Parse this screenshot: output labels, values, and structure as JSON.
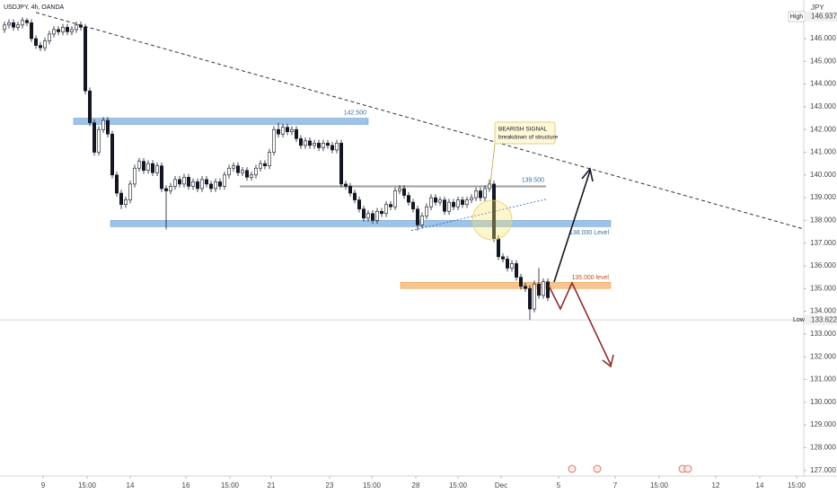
{
  "chart_data": {
    "type": "candlestick",
    "title": "USDJPY, 4h, OANDA",
    "currency": "JPY",
    "high_label": "High",
    "high_value": "146.937",
    "low_label": "Low",
    "low_value": 133.622,
    "low_value_label": "133.622",
    "callout": [
      "BEARISH SIGNAL",
      "breakdown of structure"
    ],
    "xlim": [
      -1,
      178
    ],
    "ylim": [
      126.75,
      147.7
    ],
    "xticks": [
      {
        "value": 8.6,
        "label": "9"
      },
      {
        "value": 18.4,
        "label": "15:00"
      },
      {
        "value": 28,
        "label": "14"
      },
      {
        "value": 40.4,
        "label": "16"
      },
      {
        "value": 50.2,
        "label": "15:00"
      },
      {
        "value": 59.4,
        "label": "21"
      },
      {
        "value": 72.4,
        "label": "23"
      },
      {
        "value": 81.8,
        "label": "15:00"
      },
      {
        "value": 91.6,
        "label": "28"
      },
      {
        "value": 101,
        "label": "15:00"
      },
      {
        "value": 110.6,
        "label": "Dec"
      },
      {
        "value": 123.4,
        "label": "5"
      },
      {
        "value": 136,
        "label": "7"
      },
      {
        "value": 145.8,
        "label": "15:00"
      },
      {
        "value": 158.4,
        "label": "12"
      },
      {
        "value": 168.2,
        "label": "14"
      },
      {
        "value": 176.4,
        "label": "15:00"
      }
    ],
    "yticks": [
      {
        "value": 127,
        "label": "127.000"
      },
      {
        "value": 128,
        "label": "128.000"
      },
      {
        "value": 129,
        "label": "129.000"
      },
      {
        "value": 130,
        "label": "130.000"
      },
      {
        "value": 131,
        "label": "131.000"
      },
      {
        "value": 132,
        "label": "132.000"
      },
      {
        "value": 133,
        "label": "133.000"
      },
      {
        "value": 134,
        "label": "134.000"
      },
      {
        "value": 135,
        "label": "135.000"
      },
      {
        "value": 136,
        "label": "136.000"
      },
      {
        "value": 137,
        "label": "137.000"
      },
      {
        "value": 138,
        "label": "138.000"
      },
      {
        "value": 139,
        "label": "139.000"
      },
      {
        "value": 140,
        "label": "140.000"
      },
      {
        "value": 141,
        "label": "141.000"
      },
      {
        "value": 142,
        "label": "142.000"
      },
      {
        "value": 143,
        "label": "143.000"
      },
      {
        "value": 144,
        "label": "144.000"
      },
      {
        "value": 145,
        "label": "145.000"
      },
      {
        "value": 146,
        "label": "146.000"
      }
    ],
    "up_color": "#ffffff",
    "down_color": "#131722",
    "levels": [
      {
        "label": "142.500",
        "value": 142.5,
        "start": 15.4,
        "end": 81,
        "color": "#9fc3e7",
        "style": "zone"
      },
      {
        "label": "138.000 Level",
        "value": 138,
        "start": 23.6,
        "end": 135,
        "color": "#9fc3e7",
        "style": "zone"
      },
      {
        "label": "139.500",
        "value": 139.5,
        "start": 52.4,
        "end": 120.6,
        "color": "#9e9e9e",
        "style": "line"
      },
      {
        "label": "135.000 level",
        "value": 135,
        "start": 88.2,
        "end": 135,
        "color": "#f6c48e",
        "style": "zone"
      }
    ],
    "trendlines": [
      [
        [
          7,
          147.15
        ],
        [
          178,
          137.62
        ]
      ],
      [
        [
          90.6,
          137.55
        ],
        [
          120.6,
          138.93
        ]
      ]
    ],
    "ohlc": [
      [
        146.4,
        146.75,
        146.25,
        146.6
      ],
      [
        146.6,
        146.85,
        146.45,
        146.7
      ],
      [
        146.7,
        146.85,
        146.35,
        146.5
      ],
      [
        146.5,
        146.75,
        146.35,
        146.6
      ],
      [
        146.6,
        146.94,
        146.45,
        146.8
      ],
      [
        146.8,
        146.9,
        146.55,
        146.7
      ],
      [
        146.7,
        146.85,
        145.85,
        146.0
      ],
      [
        146.0,
        146.15,
        145.55,
        145.7
      ],
      [
        145.7,
        145.85,
        145.45,
        145.6
      ],
      [
        145.6,
        146.05,
        145.45,
        145.9
      ],
      [
        145.9,
        146.35,
        145.75,
        146.2
      ],
      [
        146.2,
        146.55,
        146.05,
        146.4
      ],
      [
        146.4,
        146.55,
        146.15,
        146.3
      ],
      [
        146.3,
        146.65,
        146.15,
        146.5
      ],
      [
        146.5,
        146.65,
        146.15,
        146.3
      ],
      [
        146.3,
        146.55,
        146.15,
        146.4
      ],
      [
        146.4,
        146.75,
        146.25,
        146.6
      ],
      [
        146.6,
        146.75,
        146.35,
        146.5
      ],
      [
        146.5,
        146.65,
        143.55,
        143.7
      ],
      [
        143.7,
        143.85,
        142.15,
        142.3
      ],
      [
        142.3,
        142.45,
        140.85,
        141.0
      ],
      [
        141.0,
        142.15,
        140.85,
        142.0
      ],
      [
        142.0,
        142.55,
        141.85,
        142.4
      ],
      [
        142.4,
        142.55,
        141.65,
        141.8
      ],
      [
        141.8,
        141.95,
        139.85,
        140.0
      ],
      [
        140.0,
        140.15,
        139.05,
        139.2
      ],
      [
        139.2,
        139.35,
        138.5,
        138.7
      ],
      [
        138.7,
        139.05,
        138.55,
        138.9
      ],
      [
        138.9,
        139.75,
        138.75,
        139.6
      ],
      [
        139.6,
        140.45,
        139.45,
        140.3
      ],
      [
        140.3,
        140.75,
        140.15,
        140.6
      ],
      [
        140.6,
        140.75,
        140.05,
        140.2
      ],
      [
        140.2,
        140.65,
        140.05,
        140.5
      ],
      [
        140.5,
        140.65,
        139.95,
        140.1
      ],
      [
        140.1,
        140.55,
        139.95,
        140.4
      ],
      [
        140.4,
        140.55,
        139.25,
        139.4
      ],
      [
        139.4,
        139.55,
        137.6,
        139.3
      ],
      [
        139.3,
        139.65,
        139.15,
        139.5
      ],
      [
        139.5,
        139.95,
        139.35,
        139.8
      ],
      [
        139.8,
        139.95,
        139.45,
        139.6
      ],
      [
        139.6,
        140.05,
        139.45,
        139.9
      ],
      [
        139.9,
        140.05,
        139.35,
        139.5
      ],
      [
        139.5,
        139.85,
        139.35,
        139.7
      ],
      [
        139.7,
        139.85,
        139.25,
        139.4
      ],
      [
        139.4,
        139.95,
        139.25,
        139.8
      ],
      [
        139.8,
        139.95,
        139.45,
        139.6
      ],
      [
        139.6,
        139.75,
        139.25,
        139.4
      ],
      [
        139.4,
        139.85,
        139.25,
        139.7
      ],
      [
        139.7,
        139.85,
        139.35,
        139.5
      ],
      [
        139.5,
        140.15,
        139.35,
        140.0
      ],
      [
        140.0,
        140.45,
        139.85,
        140.3
      ],
      [
        140.3,
        140.55,
        140.15,
        140.4
      ],
      [
        140.4,
        140.55,
        139.95,
        140.1
      ],
      [
        140.1,
        140.35,
        139.95,
        140.2
      ],
      [
        140.2,
        140.35,
        139.75,
        139.9
      ],
      [
        139.9,
        140.15,
        139.75,
        140.0
      ],
      [
        140.0,
        140.45,
        139.85,
        140.3
      ],
      [
        140.3,
        140.65,
        140.15,
        140.5
      ],
      [
        140.5,
        140.65,
        140.25,
        140.4
      ],
      [
        140.4,
        141.15,
        140.25,
        141.0
      ],
      [
        141.0,
        142.15,
        140.85,
        142.0
      ],
      [
        142.0,
        142.3,
        141.65,
        141.8
      ],
      [
        141.8,
        142.25,
        141.65,
        142.1
      ],
      [
        142.1,
        142.25,
        141.75,
        141.9
      ],
      [
        141.9,
        142.15,
        141.75,
        142.0
      ],
      [
        142.0,
        142.15,
        141.45,
        141.6
      ],
      [
        141.6,
        141.75,
        141.15,
        141.3
      ],
      [
        141.3,
        141.65,
        141.15,
        141.5
      ],
      [
        141.5,
        141.65,
        141.15,
        141.3
      ],
      [
        141.3,
        141.55,
        141.15,
        141.4
      ],
      [
        141.4,
        141.55,
        141.05,
        141.2
      ],
      [
        141.2,
        141.55,
        141.05,
        141.4
      ],
      [
        141.4,
        141.55,
        141.15,
        141.3
      ],
      [
        141.3,
        141.45,
        140.95,
        141.1
      ],
      [
        141.1,
        141.55,
        140.95,
        141.4
      ],
      [
        141.4,
        141.55,
        139.45,
        139.6
      ],
      [
        139.6,
        139.75,
        139.35,
        139.5
      ],
      [
        139.5,
        139.65,
        139.05,
        139.2
      ],
      [
        139.2,
        139.35,
        138.75,
        138.9
      ],
      [
        138.9,
        139.05,
        138.35,
        138.5
      ],
      [
        138.5,
        138.65,
        137.95,
        138.1
      ],
      [
        138.1,
        138.45,
        137.95,
        138.3
      ],
      [
        138.3,
        138.45,
        137.85,
        138.0
      ],
      [
        138.0,
        138.55,
        137.85,
        138.4
      ],
      [
        138.4,
        138.55,
        138.15,
        138.3
      ],
      [
        138.3,
        138.85,
        138.15,
        138.7
      ],
      [
        138.7,
        138.85,
        138.45,
        138.6
      ],
      [
        138.6,
        139.45,
        138.45,
        139.3
      ],
      [
        139.3,
        139.55,
        139.15,
        139.4
      ],
      [
        139.4,
        139.55,
        138.95,
        139.1
      ],
      [
        139.1,
        139.25,
        138.65,
        138.8
      ],
      [
        138.8,
        138.95,
        138.35,
        138.5
      ],
      [
        138.5,
        138.65,
        137.55,
        137.8
      ],
      [
        137.8,
        138.35,
        137.65,
        138.2
      ],
      [
        138.2,
        138.75,
        138.05,
        138.6
      ],
      [
        138.6,
        139.15,
        138.45,
        139.0
      ],
      [
        139.0,
        139.15,
        138.65,
        138.8
      ],
      [
        138.8,
        139.05,
        138.65,
        138.9
      ],
      [
        138.9,
        139.05,
        138.25,
        138.4
      ],
      [
        138.4,
        138.95,
        138.25,
        138.8
      ],
      [
        138.8,
        138.95,
        138.45,
        138.6
      ],
      [
        138.6,
        139.05,
        138.45,
        138.9
      ],
      [
        138.9,
        139.05,
        138.55,
        138.7
      ],
      [
        138.7,
        139.05,
        138.55,
        138.9
      ],
      [
        138.9,
        139.15,
        138.75,
        139.0
      ],
      [
        139.0,
        139.45,
        138.85,
        139.3
      ],
      [
        139.3,
        139.45,
        138.85,
        139.0
      ],
      [
        139.0,
        139.55,
        138.85,
        139.4
      ],
      [
        139.4,
        139.8,
        139.25,
        139.6
      ],
      [
        139.6,
        139.75,
        137.05,
        137.2
      ],
      [
        137.2,
        137.35,
        136.25,
        136.4
      ],
      [
        136.4,
        136.55,
        136.15,
        136.3
      ],
      [
        136.3,
        136.45,
        135.75,
        135.9
      ],
      [
        135.9,
        136.25,
        135.75,
        136.1
      ],
      [
        136.1,
        136.25,
        135.35,
        135.5
      ],
      [
        135.5,
        135.65,
        134.95,
        135.1
      ],
      [
        135.1,
        135.25,
        134.85,
        135.0
      ],
      [
        135.0,
        135.15,
        133.62,
        134.1
      ],
      [
        134.1,
        135.35,
        133.95,
        135.2
      ],
      [
        135.2,
        135.9,
        134.55,
        134.7
      ],
      [
        134.7,
        135.45,
        134.55,
        135.3
      ],
      [
        135.3,
        135.45,
        134.45,
        134.6
      ]
    ]
  }
}
